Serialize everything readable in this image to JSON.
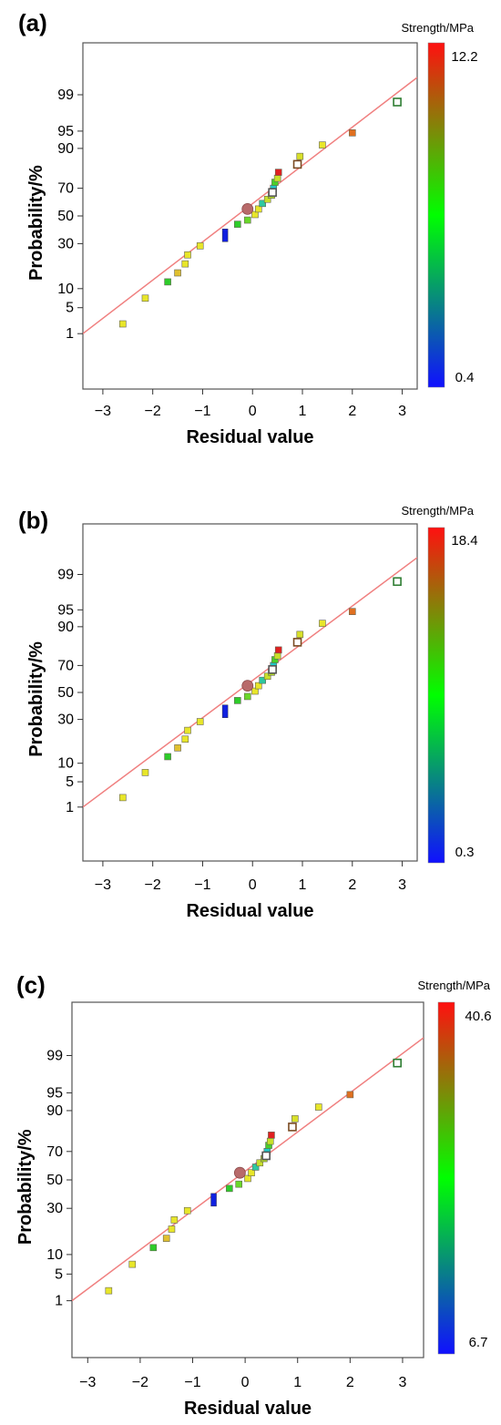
{
  "chart_data": [
    {
      "type": "scatter",
      "panel_label": "(a)",
      "xlabel": "Residual value",
      "ylabel": "Probability/%",
      "xlim": [
        -3.4,
        3.3
      ],
      "x_ticks": [
        "−3",
        "−2",
        "−1",
        "0",
        "1",
        "2",
        "3"
      ],
      "y_ticks": [
        "1",
        "5",
        "10",
        "30",
        "50",
        "70",
        "90",
        "95",
        "99"
      ],
      "y_scale": "normal-probability",
      "fit_line": "red",
      "colorbar": {
        "title": "Strength/MPa",
        "max": "12.2",
        "min": "0.4"
      },
      "points": [
        {
          "x": -2.6,
          "y": 2.5,
          "c": "#e8e62a"
        },
        {
          "x": -2.15,
          "y": 7.5,
          "c": "#e8e62a"
        },
        {
          "x": -1.7,
          "y": 13,
          "c": "#2ecc2a"
        },
        {
          "x": -1.5,
          "y": 17,
          "c": "#e0c030"
        },
        {
          "x": -1.35,
          "y": 21,
          "c": "#e8e62a"
        },
        {
          "x": -1.3,
          "y": 25,
          "c": "#e8e62a"
        },
        {
          "x": -1.05,
          "y": 29,
          "c": "#e8e62a"
        },
        {
          "x": -0.55,
          "y": 36,
          "c": "#1020e0"
        },
        {
          "x": -0.3,
          "y": 44,
          "c": "#2ecc2a"
        },
        {
          "x": -0.1,
          "y": 47,
          "c": "#6ad82a"
        },
        {
          "x": 0.05,
          "y": 51,
          "c": "#e8e62a"
        },
        {
          "x": 0.12,
          "y": 55,
          "c": "#e8e62a"
        },
        {
          "x": 0.2,
          "y": 59,
          "c": "#2ec8a0"
        },
        {
          "x": 0.3,
          "y": 62,
          "c": "#c8e02a"
        },
        {
          "x": 0.38,
          "y": 65,
          "c": "#b0d82a"
        },
        {
          "x": 0.42,
          "y": 70,
          "c": "#1ec8c8"
        },
        {
          "x": 0.45,
          "y": 73,
          "c": "#4ad02a"
        },
        {
          "x": 0.5,
          "y": 75,
          "c": "#c8e02a"
        },
        {
          "x": 0.52,
          "y": 78,
          "c": "#e02020"
        },
        {
          "x": 0.95,
          "y": 86,
          "c": "#d8e02a"
        },
        {
          "x": 1.4,
          "y": 91,
          "c": "#e8e62a"
        },
        {
          "x": 2.0,
          "y": 94.5,
          "c": "#e07020"
        },
        {
          "x": 2.9,
          "y": 98.2,
          "c": "#ffffff",
          "hollow": true,
          "stroke": "#2e7d32"
        },
        {
          "x": 0.9,
          "y": 82,
          "c": "#ffffff",
          "hollow": true,
          "stroke": "#7a4a22"
        },
        {
          "x": 0.4,
          "y": 67,
          "c": "#ffffff",
          "hollow": true,
          "stroke": "#555555"
        },
        {
          "x": -0.1,
          "y": 55,
          "c": "#b86a6a",
          "circle": true
        }
      ]
    },
    {
      "type": "scatter",
      "panel_label": "(b)",
      "xlabel": "Residual value",
      "ylabel": "Probability/%",
      "xlim": [
        -3.4,
        3.3
      ],
      "x_ticks": [
        "−3",
        "−2",
        "−1",
        "0",
        "1",
        "2",
        "3"
      ],
      "y_ticks": [
        "1",
        "5",
        "10",
        "30",
        "50",
        "70",
        "90",
        "95",
        "99"
      ],
      "y_scale": "normal-probability",
      "fit_line": "red",
      "colorbar": {
        "title": "Strength/MPa",
        "max": "18.4",
        "min": "0.3"
      },
      "points": [
        {
          "x": -2.6,
          "y": 2.5,
          "c": "#e8e62a"
        },
        {
          "x": -2.15,
          "y": 7.5,
          "c": "#e8e62a"
        },
        {
          "x": -1.7,
          "y": 13,
          "c": "#2ecc2a"
        },
        {
          "x": -1.5,
          "y": 17,
          "c": "#e0c030"
        },
        {
          "x": -1.35,
          "y": 21,
          "c": "#e8e62a"
        },
        {
          "x": -1.3,
          "y": 25,
          "c": "#e8e62a"
        },
        {
          "x": -1.05,
          "y": 29,
          "c": "#e8e62a"
        },
        {
          "x": -0.55,
          "y": 36,
          "c": "#1020e0"
        },
        {
          "x": -0.3,
          "y": 44,
          "c": "#2ecc2a"
        },
        {
          "x": -0.1,
          "y": 47,
          "c": "#6ad82a"
        },
        {
          "x": 0.05,
          "y": 51,
          "c": "#e8e62a"
        },
        {
          "x": 0.12,
          "y": 55,
          "c": "#e8e62a"
        },
        {
          "x": 0.2,
          "y": 59,
          "c": "#2ec8a0"
        },
        {
          "x": 0.3,
          "y": 62,
          "c": "#c8e02a"
        },
        {
          "x": 0.38,
          "y": 65,
          "c": "#b0d82a"
        },
        {
          "x": 0.42,
          "y": 70,
          "c": "#1ec8c8"
        },
        {
          "x": 0.45,
          "y": 73,
          "c": "#4ad02a"
        },
        {
          "x": 0.5,
          "y": 75,
          "c": "#c8e02a"
        },
        {
          "x": 0.52,
          "y": 78,
          "c": "#e02020"
        },
        {
          "x": 0.95,
          "y": 86,
          "c": "#d8e02a"
        },
        {
          "x": 1.4,
          "y": 91,
          "c": "#e8e62a"
        },
        {
          "x": 2.0,
          "y": 94.5,
          "c": "#e07020"
        },
        {
          "x": 2.9,
          "y": 98.2,
          "c": "#ffffff",
          "hollow": true,
          "stroke": "#2e7d32"
        },
        {
          "x": 0.9,
          "y": 82,
          "c": "#ffffff",
          "hollow": true,
          "stroke": "#7a4a22"
        },
        {
          "x": 0.4,
          "y": 67,
          "c": "#ffffff",
          "hollow": true,
          "stroke": "#555555"
        },
        {
          "x": -0.1,
          "y": 55,
          "c": "#b86a6a",
          "circle": true
        }
      ]
    },
    {
      "type": "scatter",
      "panel_label": "(c)",
      "xlabel": "Residual value",
      "ylabel": "Probability/%",
      "xlim": [
        -3.3,
        3.4
      ],
      "x_ticks": [
        "−3",
        "−2",
        "−1",
        "0",
        "1",
        "2",
        "3"
      ],
      "y_ticks": [
        "1",
        "5",
        "10",
        "30",
        "50",
        "70",
        "90",
        "95",
        "99"
      ],
      "y_scale": "normal-probability",
      "fit_line": "red",
      "colorbar": {
        "title": "Strength/MPa",
        "max": "40.6",
        "min": "6.7"
      },
      "points": [
        {
          "x": -2.6,
          "y": 2.5,
          "c": "#e8e62a"
        },
        {
          "x": -2.15,
          "y": 7.5,
          "c": "#e8e62a"
        },
        {
          "x": -1.75,
          "y": 13,
          "c": "#2ecc2a"
        },
        {
          "x": -1.5,
          "y": 17,
          "c": "#e0c030"
        },
        {
          "x": -1.4,
          "y": 21,
          "c": "#e8e62a"
        },
        {
          "x": -1.35,
          "y": 25,
          "c": "#e8e62a"
        },
        {
          "x": -1.1,
          "y": 29,
          "c": "#e8e62a"
        },
        {
          "x": -0.6,
          "y": 36,
          "c": "#1020e0"
        },
        {
          "x": -0.3,
          "y": 44,
          "c": "#2ecc2a"
        },
        {
          "x": -0.12,
          "y": 47,
          "c": "#6ad82a"
        },
        {
          "x": 0.05,
          "y": 51,
          "c": "#e8e62a"
        },
        {
          "x": 0.12,
          "y": 55,
          "c": "#e8e62a"
        },
        {
          "x": 0.2,
          "y": 59,
          "c": "#2ec8a0"
        },
        {
          "x": 0.28,
          "y": 62,
          "c": "#c8e02a"
        },
        {
          "x": 0.36,
          "y": 65,
          "c": "#b0d82a"
        },
        {
          "x": 0.42,
          "y": 70,
          "c": "#1ec8c8"
        },
        {
          "x": 0.45,
          "y": 73,
          "c": "#4ad02a"
        },
        {
          "x": 0.48,
          "y": 75,
          "c": "#c8e02a"
        },
        {
          "x": 0.5,
          "y": 78,
          "c": "#e02020"
        },
        {
          "x": 0.95,
          "y": 86,
          "c": "#d8e02a"
        },
        {
          "x": 1.4,
          "y": 91,
          "c": "#e8e62a"
        },
        {
          "x": 2.0,
          "y": 94.5,
          "c": "#e07020"
        },
        {
          "x": 2.9,
          "y": 98.2,
          "c": "#ffffff",
          "hollow": true,
          "stroke": "#2e7d32"
        },
        {
          "x": 0.9,
          "y": 82,
          "c": "#ffffff",
          "hollow": true,
          "stroke": "#7a4a22"
        },
        {
          "x": 0.4,
          "y": 67,
          "c": "#ffffff",
          "hollow": true,
          "stroke": "#555555"
        },
        {
          "x": -0.1,
          "y": 55,
          "c": "#b86a6a",
          "circle": true
        }
      ]
    }
  ]
}
